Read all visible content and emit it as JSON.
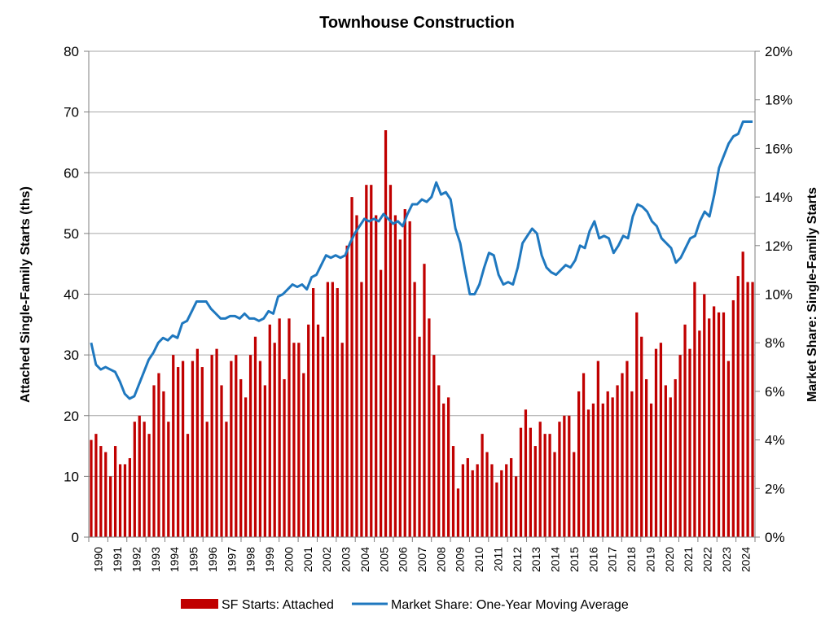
{
  "chart_data": {
    "type": "bar",
    "title": "Townhouse Construction",
    "xlabel": "",
    "ylabel": "Attached Single-Family Starts (ths)",
    "y2label": "Market Share: Single-Family Starts",
    "ylim": [
      0,
      80
    ],
    "y2lim": [
      0,
      0.2
    ],
    "yticks": [
      "0",
      "10",
      "20",
      "30",
      "40",
      "50",
      "60",
      "70",
      "80"
    ],
    "y2ticks": [
      "0%",
      "2%",
      "4%",
      "6%",
      "8%",
      "10%",
      "12%",
      "14%",
      "16%",
      "18%",
      "20%"
    ],
    "x_labels": [
      "1990",
      "1991",
      "1992",
      "1993",
      "1994",
      "1995",
      "1996",
      "1997",
      "1998",
      "1999",
      "2000",
      "2001",
      "2002",
      "2003",
      "2004",
      "2005",
      "2006",
      "2007",
      "2008",
      "2009",
      "2010",
      "2011",
      "2012",
      "2013",
      "2014",
      "2015",
      "2016",
      "2017",
      "2018",
      "2019",
      "2020",
      "2021",
      "2022",
      "2023",
      "2024"
    ],
    "grid": true,
    "legend_position": "bottom",
    "series": [
      {
        "name": "SF Starts: Attached",
        "type": "bar",
        "color": "#c00000",
        "values": [
          16,
          17,
          15,
          14,
          10,
          15,
          12,
          12,
          13,
          19,
          20,
          19,
          17,
          25,
          27,
          24,
          19,
          30,
          28,
          29,
          17,
          29,
          31,
          28,
          19,
          30,
          31,
          25,
          19,
          29,
          30,
          26,
          23,
          30,
          33,
          29,
          25,
          35,
          32,
          36,
          26,
          36,
          32,
          32,
          27,
          35,
          41,
          35,
          33,
          42,
          42,
          41,
          32,
          48,
          56,
          53,
          42,
          58,
          58,
          53,
          44,
          67,
          58,
          53,
          49,
          54,
          52,
          42,
          33,
          45,
          36,
          30,
          25,
          22,
          23,
          15,
          8,
          12,
          13,
          11,
          12,
          17,
          14,
          12,
          9,
          11,
          12,
          13,
          10,
          18,
          21,
          18,
          15,
          19,
          17,
          17,
          14,
          19,
          20,
          20,
          14,
          24,
          27,
          21,
          22,
          29,
          22,
          24,
          23,
          25,
          27,
          29,
          24,
          37,
          33,
          26,
          22,
          31,
          32,
          25,
          23,
          26,
          30,
          35,
          31,
          42,
          34,
          40,
          36,
          38,
          37,
          37,
          29,
          39,
          43,
          47,
          42,
          42
        ]
      },
      {
        "name": "Market Share: One-Year Moving Average",
        "type": "line",
        "axis": "right",
        "color": "#1f78bf",
        "values": [
          0.08,
          0.071,
          0.069,
          0.07,
          0.069,
          0.068,
          0.064,
          0.059,
          0.057,
          0.058,
          0.063,
          0.068,
          0.073,
          0.076,
          0.08,
          0.082,
          0.081,
          0.083,
          0.082,
          0.088,
          0.089,
          0.093,
          0.097,
          0.097,
          0.097,
          0.094,
          0.092,
          0.09,
          0.09,
          0.091,
          0.091,
          0.09,
          0.092,
          0.09,
          0.09,
          0.089,
          0.09,
          0.093,
          0.092,
          0.099,
          0.1,
          0.102,
          0.104,
          0.103,
          0.104,
          0.102,
          0.107,
          0.108,
          0.112,
          0.116,
          0.115,
          0.116,
          0.115,
          0.116,
          0.121,
          0.125,
          0.128,
          0.131,
          0.13,
          0.131,
          0.13,
          0.133,
          0.131,
          0.129,
          0.13,
          0.128,
          0.133,
          0.137,
          0.137,
          0.139,
          0.138,
          0.14,
          0.146,
          0.141,
          0.142,
          0.139,
          0.127,
          0.121,
          0.11,
          0.1,
          0.1,
          0.104,
          0.111,
          0.117,
          0.116,
          0.108,
          0.104,
          0.105,
          0.104,
          0.111,
          0.121,
          0.124,
          0.127,
          0.125,
          0.116,
          0.111,
          0.109,
          0.108,
          0.11,
          0.112,
          0.111,
          0.114,
          0.12,
          0.119,
          0.126,
          0.13,
          0.123,
          0.124,
          0.123,
          0.117,
          0.12,
          0.124,
          0.123,
          0.132,
          0.137,
          0.136,
          0.134,
          0.13,
          0.128,
          0.123,
          0.121,
          0.119,
          0.113,
          0.115,
          0.119,
          0.123,
          0.124,
          0.13,
          0.134,
          0.132,
          0.141,
          0.152,
          0.157,
          0.162,
          0.165,
          0.166,
          0.171,
          0.171,
          0.171
        ]
      }
    ]
  }
}
